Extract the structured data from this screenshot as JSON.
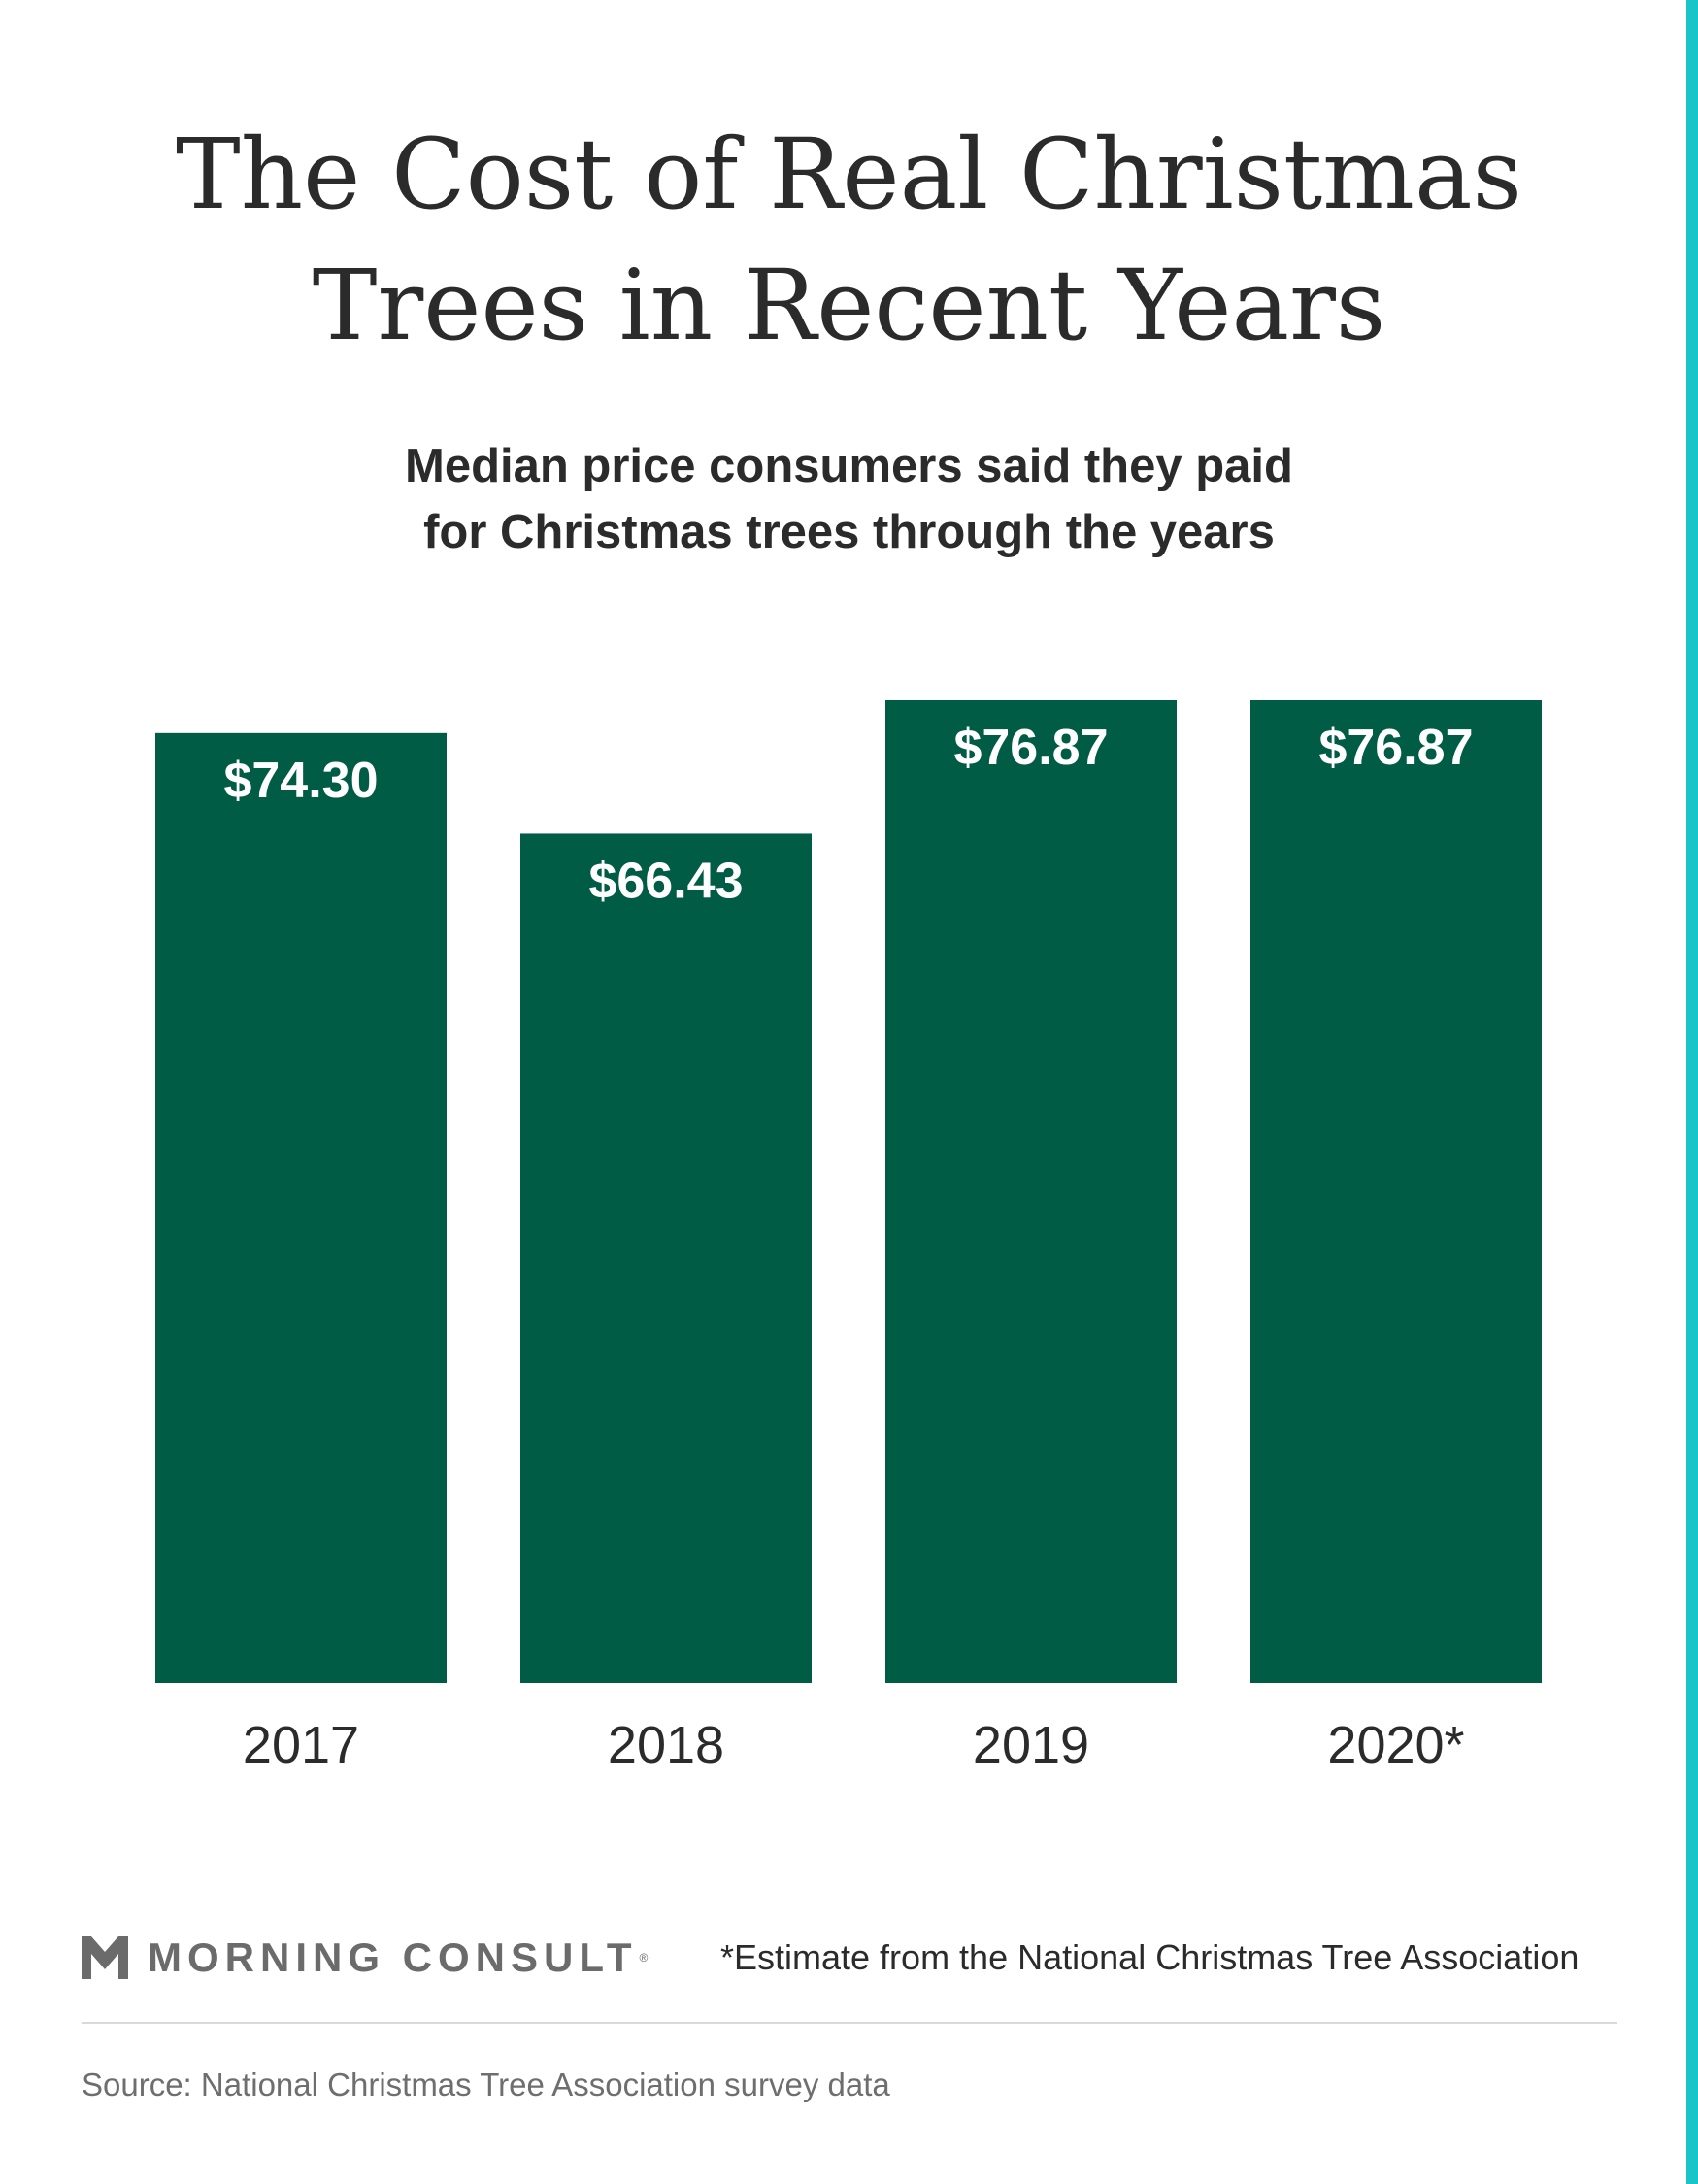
{
  "colors": {
    "bar": "#005c45",
    "bar_label": "#ffffff",
    "text": "#2b2b2b",
    "accent_strip": "#19c5c8",
    "muted": "#6e6e6e"
  },
  "title_lines": [
    "The Cost of Real Christmas",
    "Trees in Recent Years"
  ],
  "subtitle_lines": [
    "Median price consumers said they paid",
    "for Christmas trees through the years"
  ],
  "chart_data": {
    "type": "bar",
    "title": "The Cost of Real Christmas Trees in Recent Years",
    "subtitle": "Median price consumers said they paid for Christmas trees through the years",
    "categories": [
      "2017",
      "2018",
      "2019",
      "2020*"
    ],
    "values": [
      74.3,
      66.43,
      76.87,
      76.87
    ],
    "value_labels": [
      "$74.30",
      "$66.43",
      "$76.87",
      "$76.87"
    ],
    "xlabel": "",
    "ylabel": "",
    "ylim": [
      0,
      76.87
    ],
    "grid": false,
    "legend": "none"
  },
  "footnote": "*Estimate from the National Christmas Tree Association",
  "logo": {
    "text": "MORNING CONSULT",
    "reg": "®",
    "icon": "morning-consult-m-icon"
  },
  "source": "Source: National Christmas Tree Association survey data"
}
